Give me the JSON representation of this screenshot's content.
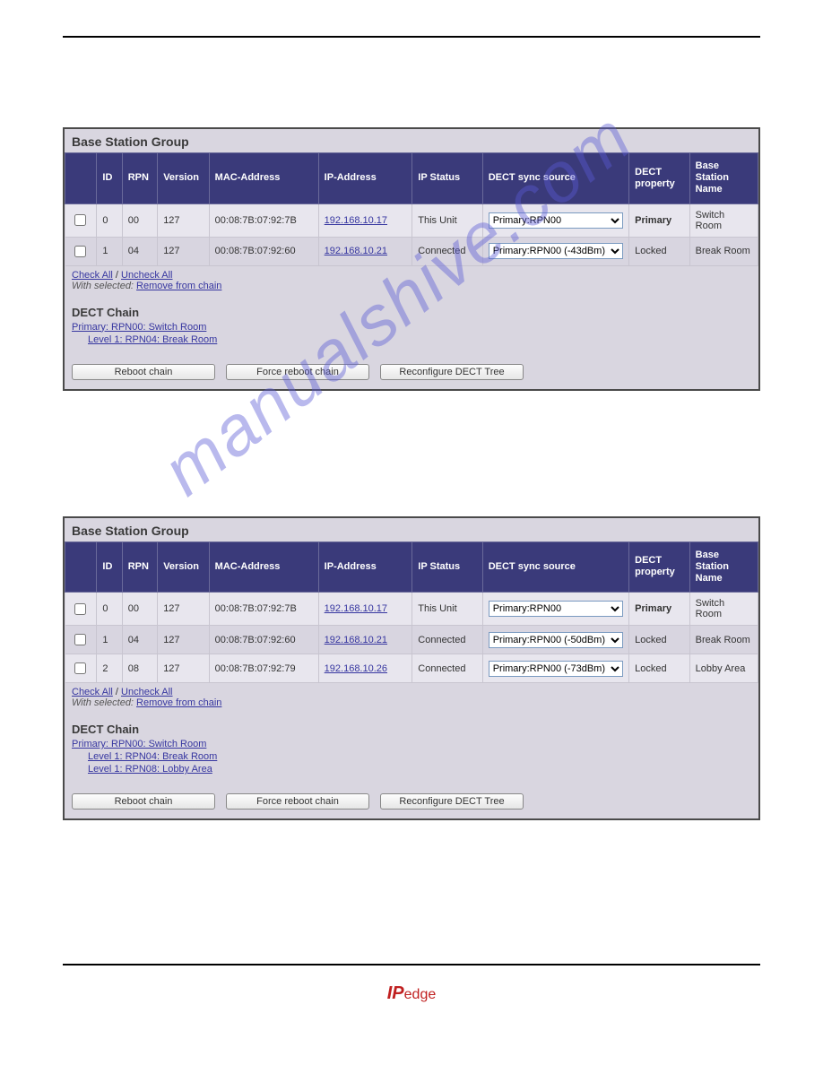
{
  "watermark_text": "manualshive.com",
  "footer_logo": {
    "prefix": "IP",
    "suffix": "edge"
  },
  "panels": [
    {
      "title": "Base Station Group",
      "columns": [
        "",
        "ID",
        "RPN",
        "Version",
        "MAC-Address",
        "IP-Address",
        "IP Status",
        "DECT sync source",
        "DECT property",
        "Base Station Name"
      ],
      "rows": [
        {
          "id": "0",
          "rpn": "00",
          "version": "127",
          "mac": "00:08:7B:07:92:7B",
          "ip": "192.168.10.17",
          "status": "This Unit",
          "sync": "Primary:RPN00",
          "property": "Primary",
          "property_bold": true,
          "name": "Switch Room",
          "alt": false
        },
        {
          "id": "1",
          "rpn": "04",
          "version": "127",
          "mac": "00:08:7B:07:92:60",
          "ip": "192.168.10.21",
          "status": "Connected",
          "sync": "Primary:RPN00 (-43dBm)",
          "property": "Locked",
          "property_bold": false,
          "name": "Break Room",
          "alt": true
        }
      ],
      "check_all": "Check All",
      "uncheck_all": "Uncheck All",
      "with_selected_label": "With selected:",
      "remove_link": "Remove from chain",
      "chain_title": "DECT Chain",
      "chain": [
        {
          "text": "Primary: RPN00: Switch Room",
          "indent": 0
        },
        {
          "text": "Level 1: RPN04: Break Room",
          "indent": 1
        }
      ],
      "buttons": [
        "Reboot chain",
        "Force reboot chain",
        "Reconfigure DECT Tree"
      ]
    },
    {
      "title": "Base Station Group",
      "columns": [
        "",
        "ID",
        "RPN",
        "Version",
        "MAC-Address",
        "IP-Address",
        "IP Status",
        "DECT sync source",
        "DECT property",
        "Base Station Name"
      ],
      "rows": [
        {
          "id": "0",
          "rpn": "00",
          "version": "127",
          "mac": "00:08:7B:07:92:7B",
          "ip": "192.168.10.17",
          "status": "This Unit",
          "sync": "Primary:RPN00",
          "property": "Primary",
          "property_bold": true,
          "name": "Switch Room",
          "alt": false
        },
        {
          "id": "1",
          "rpn": "04",
          "version": "127",
          "mac": "00:08:7B:07:92:60",
          "ip": "192.168.10.21",
          "status": "Connected",
          "sync": "Primary:RPN00 (-50dBm)",
          "property": "Locked",
          "property_bold": false,
          "name": "Break Room",
          "alt": true
        },
        {
          "id": "2",
          "rpn": "08",
          "version": "127",
          "mac": "00:08:7B:07:92:79",
          "ip": "192.168.10.26",
          "status": "Connected",
          "sync": "Primary:RPN00 (-73dBm)",
          "property": "Locked",
          "property_bold": false,
          "name": "Lobby Area",
          "alt": false
        }
      ],
      "check_all": "Check All",
      "uncheck_all": "Uncheck All",
      "with_selected_label": "With selected:",
      "remove_link": "Remove from chain",
      "chain_title": "DECT Chain",
      "chain": [
        {
          "text": "Primary: RPN00: Switch Room",
          "indent": 0
        },
        {
          "text": "Level 1: RPN04: Break Room",
          "indent": 1
        },
        {
          "text": "Level 1: RPN08: Lobby Area",
          "indent": 1
        }
      ],
      "buttons": [
        "Reboot chain",
        "Force reboot chain",
        "Reconfigure DECT Tree"
      ]
    }
  ]
}
